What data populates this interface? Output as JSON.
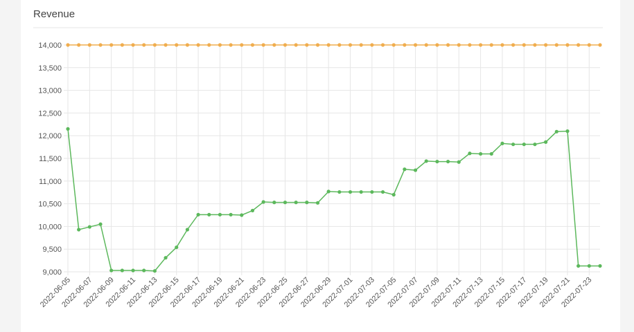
{
  "chart_data": {
    "type": "line",
    "title": "Revenue",
    "categories": [
      "2022-06-05",
      null,
      "2022-06-07",
      null,
      "2022-06-09",
      null,
      "2022-06-11",
      null,
      "2022-06-13",
      null,
      "2022-06-15",
      null,
      "2022-06-17",
      null,
      "2022-06-19",
      null,
      "2022-06-21",
      null,
      "2022-06-23",
      null,
      "2022-06-25",
      null,
      "2022-06-27",
      null,
      "2022-06-29",
      null,
      "2022-07-01",
      null,
      "2022-07-03",
      null,
      "2022-07-05",
      null,
      "2022-07-07",
      null,
      "2022-07-09",
      null,
      "2022-07-11",
      null,
      "2022-07-13",
      null,
      "2022-07-15",
      null,
      "2022-07-17",
      null,
      "2022-07-19",
      null,
      "2022-07-21",
      null,
      "2022-07-23",
      null
    ],
    "series": [
      {
        "color": "#f0ad4e",
        "values": [
          14000,
          14000,
          14000,
          14000,
          14000,
          14000,
          14000,
          14000,
          14000,
          14000,
          14000,
          14000,
          14000,
          14000,
          14000,
          14000,
          14000,
          14000,
          14000,
          14000,
          14000,
          14000,
          14000,
          14000,
          14000,
          14000,
          14000,
          14000,
          14000,
          14000,
          14000,
          14000,
          14000,
          14000,
          14000,
          14000,
          14000,
          14000,
          14000,
          14000,
          14000,
          14000,
          14000,
          14000,
          14000,
          14000,
          14000,
          14000,
          14000,
          14000
        ]
      },
      {
        "color": "#5cb85c",
        "values": [
          12150,
          9930,
          9990,
          10050,
          9030,
          9030,
          9030,
          9030,
          9020,
          9310,
          9540,
          9930,
          10260,
          10260,
          10260,
          10260,
          10250,
          10350,
          10540,
          10530,
          10530,
          10530,
          10530,
          10520,
          10770,
          10760,
          10760,
          10760,
          10760,
          10760,
          10700,
          11260,
          11240,
          11440,
          11430,
          11430,
          11420,
          11610,
          11600,
          11600,
          11830,
          11810,
          11810,
          11810,
          11860,
          12090,
          12100,
          9130,
          9130,
          9130
        ]
      }
    ],
    "ylim": [
      9000,
      14000
    ],
    "yticks": [
      {
        "value": 9000,
        "label": "9,000"
      },
      {
        "value": 9500,
        "label": "9,500"
      },
      {
        "value": 10000,
        "label": "10,000"
      },
      {
        "value": 10500,
        "label": "10,500"
      },
      {
        "value": 11000,
        "label": "11,000"
      },
      {
        "value": 11500,
        "label": "11,500"
      },
      {
        "value": 12000,
        "label": "12,000"
      },
      {
        "value": 12500,
        "label": "12,500"
      },
      {
        "value": 13000,
        "label": "13,000"
      },
      {
        "value": 13500,
        "label": "13,500"
      },
      {
        "value": 14000,
        "label": "14,000"
      }
    ],
    "grid": true
  }
}
